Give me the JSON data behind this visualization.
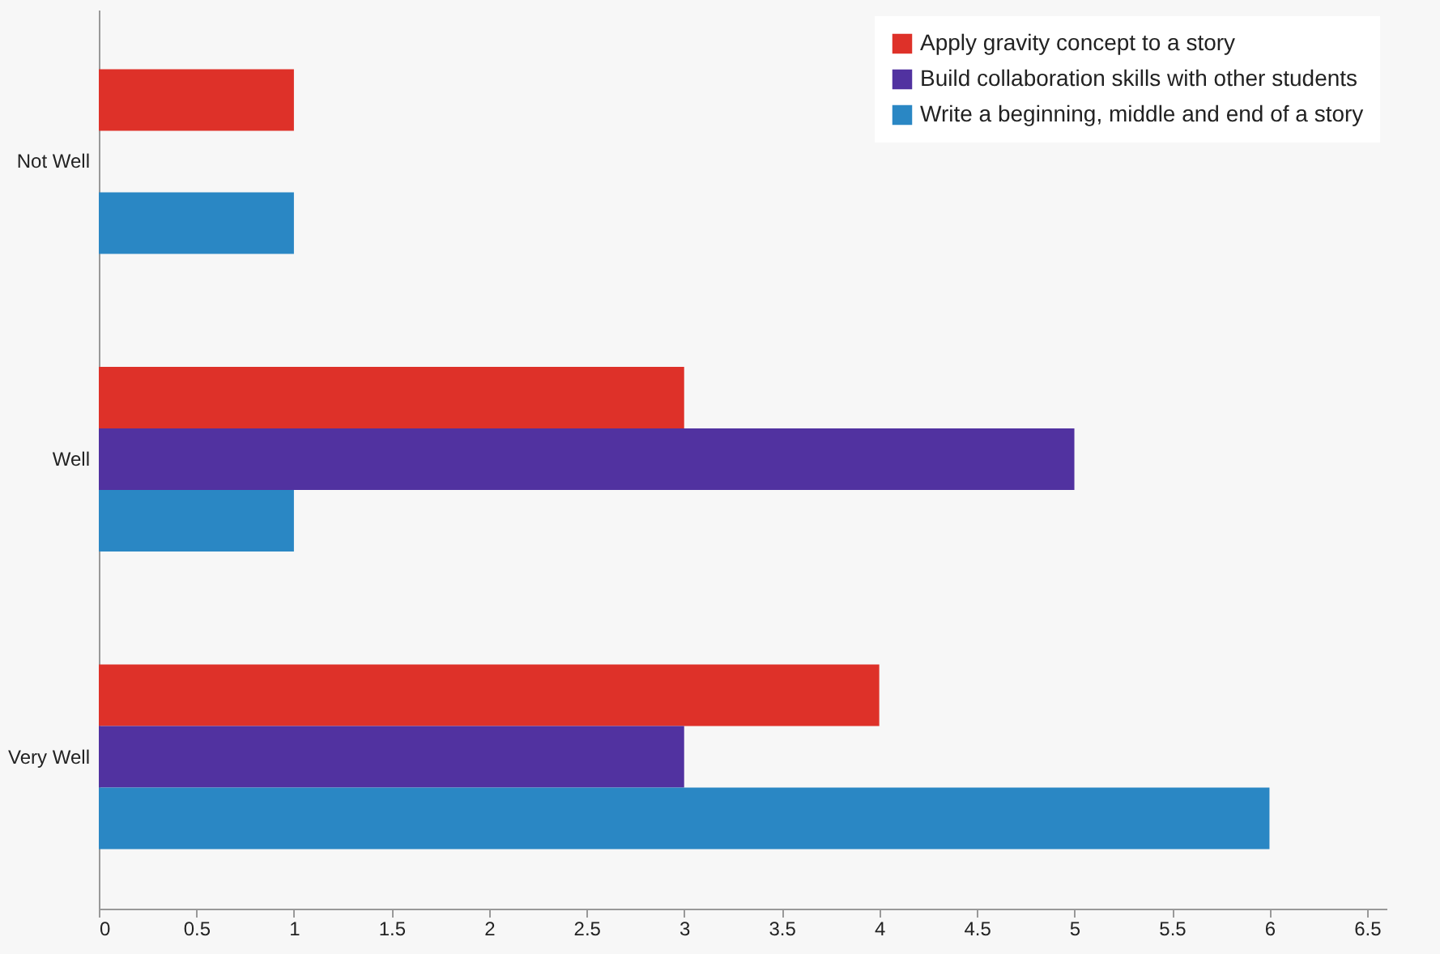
{
  "chart_data": {
    "type": "bar",
    "orientation": "horizontal",
    "categories": [
      "Not Well",
      "Well",
      "Very Well"
    ],
    "series": [
      {
        "name": "Apply gravity concept to a story",
        "color": "#de3129",
        "values": [
          1,
          3,
          4
        ]
      },
      {
        "name": "Build collaboration skills with other students",
        "color": "#5132a0",
        "values": [
          null,
          5,
          3
        ]
      },
      {
        "name": "Write a beginning, middle and end of a story",
        "color": "#2a87c4",
        "values": [
          1,
          1,
          6
        ]
      }
    ],
    "xlim": [
      0,
      6.6
    ],
    "xticks": [
      0,
      0.5,
      1,
      1.5,
      2,
      2.5,
      3,
      3.5,
      4,
      4.5,
      5,
      5.5,
      6,
      6.5
    ],
    "grid": false,
    "legend": "top right"
  }
}
